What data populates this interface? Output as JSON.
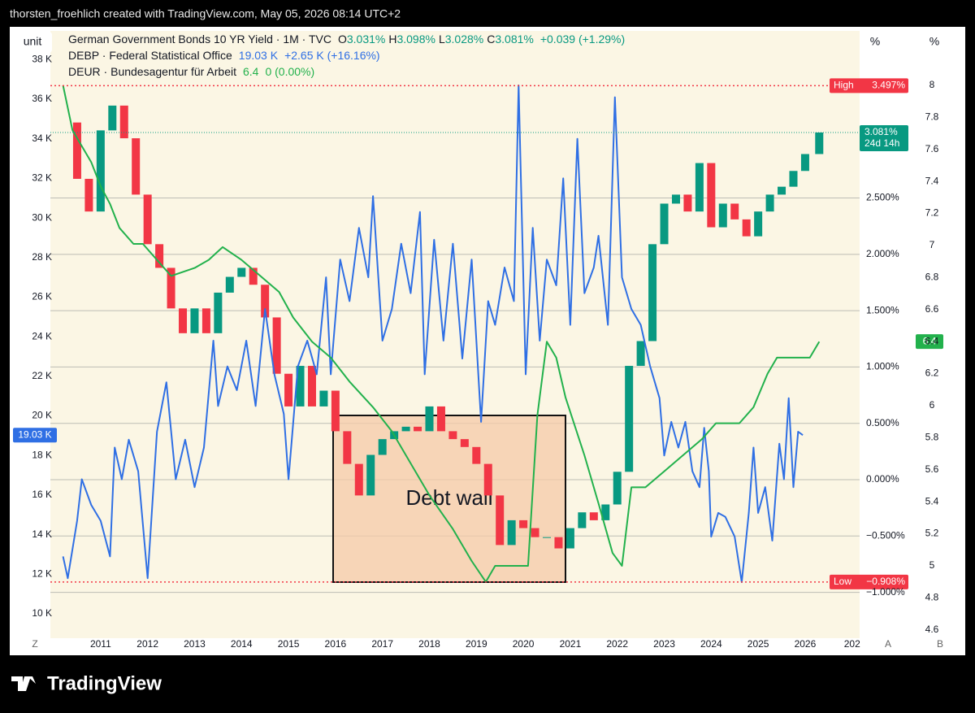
{
  "header": "thorsten_froehlich created with TradingView.com, May 05, 2026 08:14 UTC+2",
  "toolbar": {
    "unit": "unit",
    "percent_buttons": [
      "%",
      "%"
    ],
    "bottom_left": "Z",
    "bottom_right": [
      "A",
      "B"
    ]
  },
  "footer": "TradingView",
  "annotation": "Debt wall",
  "chart_data": {
    "type": "combo",
    "xlim": [
      2009.93,
      2027.16
    ],
    "xticks": [
      2011,
      2012,
      2013,
      2014,
      2015,
      2016,
      2017,
      2018,
      2019,
      2020,
      2021,
      2022,
      2023,
      2024,
      2025,
      2026,
      {
        "value": 2027,
        "label": "202"
      }
    ],
    "ylim": [
      -1.407,
      3.983
    ],
    "yticks": [
      {
        "value": -1,
        "label": "−1.000%"
      },
      {
        "value": -0.5,
        "label": "−0.500%"
      },
      {
        "value": 0,
        "label": "0.000%"
      },
      {
        "value": 0.5,
        "label": "0.500%"
      },
      {
        "value": 1,
        "label": "1.000%"
      },
      {
        "value": 1.5,
        "label": "1.500%"
      },
      {
        "value": 2,
        "label": "2.000%"
      },
      {
        "value": 2.5,
        "label": "2.500%"
      }
    ],
    "y2lim": [
      8.77,
      39.45
    ],
    "y2ticks": [
      {
        "value": 10,
        "label": "10 K"
      },
      {
        "value": 12,
        "label": "12 K"
      },
      {
        "value": 14,
        "label": "14 K"
      },
      {
        "value": 16,
        "label": "16 K"
      },
      {
        "value": 18,
        "label": "18 K"
      },
      {
        "value": 20,
        "label": "20 K"
      },
      {
        "value": 22,
        "label": "22 K"
      },
      {
        "value": 24,
        "label": "24 K"
      },
      {
        "value": 26,
        "label": "26 K"
      },
      {
        "value": 28,
        "label": "28 K"
      },
      {
        "value": 30,
        "label": "30 K"
      },
      {
        "value": 32,
        "label": "32 K"
      },
      {
        "value": 34,
        "label": "34 K"
      },
      {
        "value": 36,
        "label": "36 K"
      },
      {
        "value": 38,
        "label": "38 K"
      }
    ],
    "y3lim": [
      4.548,
      8.34
    ],
    "y3ticks": [
      4.6,
      4.8,
      5,
      5.2,
      5.4,
      5.6,
      5.8,
      6,
      6.2,
      6.4,
      6.6,
      6.8,
      7,
      7.2,
      7.4,
      7.6,
      7.8,
      8
    ],
    "grid": true,
    "high": {
      "label": "High",
      "value": 3.497,
      "value_label": "3.497%"
    },
    "low": {
      "label": "Low",
      "value": -0.908,
      "value_label": "−0.908%"
    },
    "last": {
      "value": 3.081,
      "label": "3.081%",
      "countdown": "24d 14h"
    },
    "series": [
      {
        "name": "German Government Bonds 10 YR Yield · 1M · TVC",
        "type": "candlestick",
        "axis": "y",
        "color": "#089981",
        "color_down": "#f23645",
        "legend": [
          {
            "key": "O",
            "value": "3.031%"
          },
          {
            "key": "H",
            "value": "3.098%"
          },
          {
            "key": "L",
            "value": "3.028%"
          },
          {
            "key": "C",
            "value": "3.081%"
          },
          {
            "key": "",
            "value": "+0.039 (+1.29%)"
          }
        ],
        "x": [
          2010.25,
          2010.5,
          2010.75,
          2011,
          2011.25,
          2011.5,
          2011.75,
          2012,
          2012.25,
          2012.5,
          2012.75,
          2013,
          2013.25,
          2013.5,
          2013.75,
          2014,
          2014.25,
          2014.5,
          2014.75,
          2015,
          2015.25,
          2015.5,
          2015.75,
          2016,
          2016.25,
          2016.5,
          2016.75,
          2017,
          2017.25,
          2017.5,
          2017.75,
          2018,
          2018.25,
          2018.5,
          2018.75,
          2019,
          2019.25,
          2019.5,
          2019.75,
          2020,
          2020.25,
          2020.5,
          2020.75,
          2021,
          2021.25,
          2021.5,
          2021.75,
          2022,
          2022.25,
          2022.5,
          2022.75,
          2023,
          2023.25,
          2023.5,
          2023.75,
          2024,
          2024.25,
          2024.5,
          2024.75,
          2025,
          2025.25,
          2025.5,
          2025.75,
          2026,
          2026.3
        ],
        "values": [
          3.17,
          2.67,
          2.38,
          3.1,
          3.32,
          3.03,
          2.53,
          2.09,
          1.88,
          1.52,
          1.3,
          1.52,
          1.3,
          1.66,
          1.8,
          1.88,
          1.73,
          1.44,
          0.94,
          0.65,
          1.01,
          0.65,
          0.79,
          0.43,
          0.14,
          -0.14,
          0.22,
          0.36,
          0.43,
          0.47,
          0.43,
          0.65,
          0.43,
          0.36,
          0.29,
          0.14,
          -0.14,
          -0.58,
          -0.36,
          -0.43,
          -0.51,
          -0.51,
          -0.61,
          -0.43,
          -0.29,
          -0.36,
          -0.22,
          0.07,
          1.01,
          1.23,
          2.09,
          2.45,
          2.53,
          2.38,
          2.81,
          2.24,
          2.45,
          2.31,
          2.16,
          2.38,
          2.53,
          2.6,
          2.74,
          2.89,
          3.081
        ]
      },
      {
        "name": "DEBP · Federal Statistical Office",
        "type": "line",
        "axis": "y2",
        "color": "#2f6fe4",
        "legend": [
          {
            "key": "",
            "value": "19.03 K"
          },
          {
            "key": "",
            "value": "+2.65 K (+16.16%)"
          }
        ],
        "x": [
          2010.2,
          2010.3,
          2010.5,
          2010.6,
          2010.8,
          2011,
          2011.2,
          2011.3,
          2011.45,
          2011.6,
          2011.8,
          2012,
          2012.2,
          2012.4,
          2012.6,
          2012.8,
          2013,
          2013.2,
          2013.4,
          2013.5,
          2013.7,
          2013.9,
          2014.1,
          2014.3,
          2014.5,
          2014.7,
          2014.9,
          2015,
          2015.2,
          2015.4,
          2015.6,
          2015.8,
          2015.9,
          2016.1,
          2016.3,
          2016.5,
          2016.7,
          2016.8,
          2017,
          2017.2,
          2017.4,
          2017.6,
          2017.8,
          2017.9,
          2018.1,
          2018.3,
          2018.5,
          2018.7,
          2018.9,
          2019.1,
          2019.25,
          2019.4,
          2019.6,
          2019.8,
          2019.9,
          2020.05,
          2020.2,
          2020.35,
          2020.5,
          2020.7,
          2020.85,
          2021,
          2021.15,
          2021.3,
          2021.5,
          2021.6,
          2021.8,
          2021.95,
          2022.1,
          2022.3,
          2022.5,
          2022.7,
          2022.9,
          2023,
          2023.15,
          2023.3,
          2023.45,
          2023.6,
          2023.75,
          2023.85,
          2023.95,
          2024,
          2024.15,
          2024.3,
          2024.5,
          2024.65,
          2024.8,
          2024.9,
          2025,
          2025.15,
          2025.3,
          2025.45,
          2025.55,
          2025.65,
          2025.75,
          2025.85,
          2025.95
        ],
        "values": [
          12.9,
          11.8,
          14.7,
          16.8,
          15.5,
          14.7,
          12.9,
          18.4,
          16.8,
          18.8,
          17.2,
          11.8,
          19.2,
          21.7,
          16.8,
          18.8,
          16.4,
          18.4,
          23.8,
          20.5,
          22.5,
          21.3,
          23.8,
          20.5,
          25.4,
          22.1,
          20.1,
          16.8,
          22.5,
          23.8,
          22.1,
          27,
          22.1,
          27.9,
          25.8,
          29.5,
          27,
          31.1,
          23.8,
          25.4,
          28.7,
          26.2,
          30.3,
          22.1,
          28.9,
          23.8,
          28.7,
          22.9,
          27.9,
          19.7,
          25.8,
          24.6,
          27.5,
          25.8,
          36.7,
          22.1,
          29.5,
          23.8,
          27.9,
          26.6,
          32,
          24.6,
          34,
          26.2,
          27.5,
          29.1,
          24.6,
          36.1,
          27,
          25.4,
          24.6,
          22.5,
          20.9,
          18,
          19.7,
          18.4,
          19.7,
          17.2,
          16.4,
          19.4,
          17.2,
          13.9,
          15.1,
          14.9,
          13.9,
          11.6,
          15.1,
          18.4,
          15.1,
          16.4,
          13.7,
          18.6,
          16.8,
          20.9,
          16.4,
          19.2,
          19.03
        ]
      },
      {
        "name": "DEUR · Bundesagentur für Arbeit",
        "type": "line",
        "axis": "y3",
        "color": "#22b14c",
        "legend": [
          {
            "key": "",
            "value": "6.4"
          },
          {
            "key": "",
            "value": "0 (0.00%)"
          }
        ],
        "x": [
          2010.2,
          2010.4,
          2010.6,
          2010.8,
          2011,
          2011.2,
          2011.4,
          2011.7,
          2011.9,
          2012.2,
          2012.5,
          2013,
          2013.3,
          2013.6,
          2014,
          2014.4,
          2014.8,
          2015.1,
          2015.5,
          2015.9,
          2016.3,
          2016.8,
          2017.2,
          2017.6,
          2018,
          2018.5,
          2018.9,
          2019.2,
          2019.4,
          2020.1,
          2020.3,
          2020.5,
          2020.7,
          2020.9,
          2021.3,
          2021.6,
          2021.9,
          2022.1,
          2022.3,
          2022.6,
          2023,
          2023.4,
          2023.8,
          2024.1,
          2024.6,
          2024.9,
          2025.2,
          2025.4,
          2025.8,
          2026.1,
          2026.3
        ],
        "values": [
          8,
          7.72,
          7.62,
          7.52,
          7.37,
          7.26,
          7.11,
          7.01,
          7.01,
          6.91,
          6.81,
          6.86,
          6.91,
          6.99,
          6.91,
          6.81,
          6.71,
          6.55,
          6.4,
          6.3,
          6.15,
          5.99,
          5.84,
          5.64,
          5.44,
          5.23,
          5.03,
          4.9,
          5,
          5,
          5.94,
          6.4,
          6.3,
          6.05,
          5.69,
          5.39,
          5.08,
          5,
          5.49,
          5.49,
          5.59,
          5.69,
          5.79,
          5.89,
          5.89,
          5.99,
          6.2,
          6.3,
          6.3,
          6.3,
          6.4
        ]
      }
    ]
  }
}
